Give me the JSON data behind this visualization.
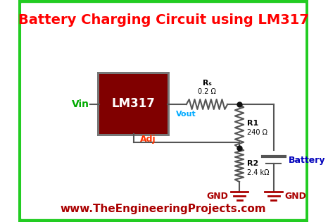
{
  "title": "Battery Charging Circuit using LM317",
  "title_color": "#FF0000",
  "title_fontsize": 14,
  "website": "www.TheEngineeringProjects.com",
  "website_color": "#AA0000",
  "website_fontsize": 11,
  "bg_color": "#FFFFFF",
  "border_color": "#22CC22",
  "border_lw": 7,
  "lm317_box_color": "#800000",
  "lm317_box_gray": "#777777",
  "lm317_text": "LM317",
  "lm317_text_color": "#FFFFFF",
  "vin_label": "Vin",
  "vin_color": "#00AA00",
  "vout_label": "Vout",
  "vout_color": "#00AAFF",
  "adj_label": "Adj",
  "adj_color": "#FF3300",
  "rs_label": "Rₛ",
  "rs_value": "0.2 Ω",
  "r1_label": "R1",
  "r1_value": "240 Ω",
  "r2_label": "R2",
  "r2_value": "2.4 kΩ",
  "gnd_label": "GND",
  "gnd_color": "#AA0000",
  "battery_label": "Battery",
  "battery_color": "#0000BB",
  "wire_color": "#555555",
  "component_color": "#555555",
  "dot_color": "#111111",
  "label_color": "#000000"
}
